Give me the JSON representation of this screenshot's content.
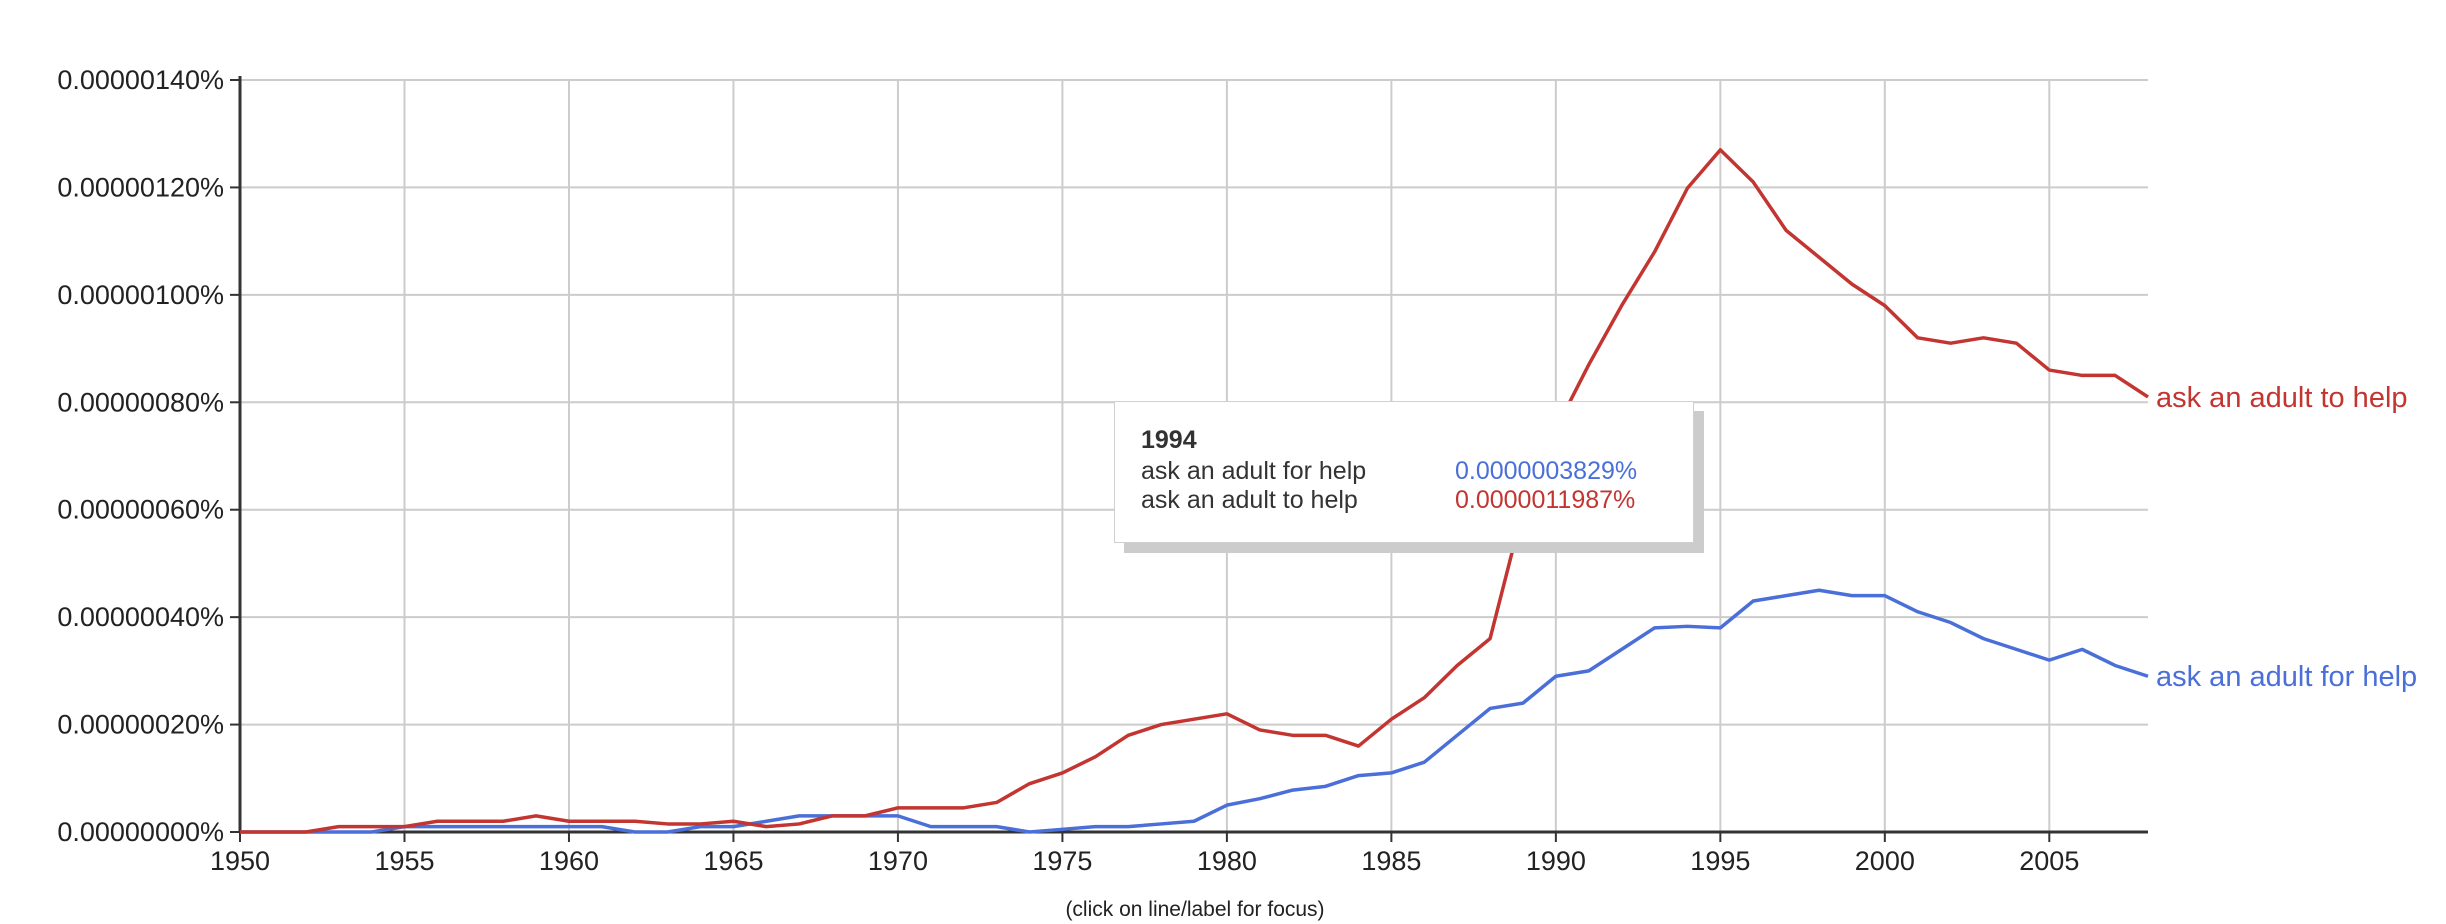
{
  "chart_data": {
    "type": "line",
    "x": [
      1950,
      1951,
      1952,
      1953,
      1954,
      1955,
      1956,
      1957,
      1958,
      1959,
      1960,
      1961,
      1962,
      1963,
      1964,
      1965,
      1966,
      1967,
      1968,
      1969,
      1970,
      1971,
      1972,
      1973,
      1974,
      1975,
      1976,
      1977,
      1978,
      1979,
      1980,
      1981,
      1982,
      1983,
      1984,
      1985,
      1986,
      1987,
      1988,
      1989,
      1990,
      1991,
      1992,
      1993,
      1994,
      1995,
      1996,
      1997,
      1998,
      1999,
      2000,
      2001,
      2002,
      2003,
      2004,
      2005,
      2006,
      2007,
      2008
    ],
    "series": [
      {
        "name": "ask an adult for help",
        "color": "#4a6fd8",
        "values": [
          0,
          0,
          0,
          0,
          0,
          1e-10,
          1e-10,
          1e-10,
          1e-10,
          1e-10,
          1e-10,
          1e-10,
          0,
          0,
          1e-10,
          1e-10,
          2e-10,
          3e-10,
          3e-10,
          3e-10,
          3e-10,
          1e-10,
          1e-10,
          1e-10,
          0,
          5e-11,
          1e-10,
          1e-10,
          1.5e-10,
          2e-10,
          5e-10,
          6.2e-10,
          7.8e-10,
          8.5e-10,
          1.05e-09,
          1.1e-09,
          1.3e-09,
          1.8e-09,
          2.3e-09,
          2.4e-09,
          2.9e-09,
          3e-09,
          3.4e-09,
          3.8e-09,
          3.8293e-09,
          3.8e-09,
          4.3e-09,
          4.4e-09,
          4.5e-09,
          4.4e-09,
          4.4e-09,
          4.1e-09,
          3.9e-09,
          3.6e-09,
          3.4e-09,
          3.2e-09,
          3.4e-09,
          3.1e-09,
          2.9e-09
        ]
      },
      {
        "name": "ask an adult to help",
        "color": "#c23531",
        "values": [
          0,
          0,
          0,
          1e-10,
          1e-10,
          1e-10,
          2e-10,
          2e-10,
          2e-10,
          3e-10,
          2e-10,
          2e-10,
          2e-10,
          1.5e-10,
          1.5e-10,
          2e-10,
          1e-10,
          1.5e-10,
          3e-10,
          3e-10,
          4.5e-10,
          4.5e-10,
          4.5e-10,
          5.5e-10,
          9e-10,
          1.1e-09,
          1.4e-09,
          1.8e-09,
          2e-09,
          2.1e-09,
          2.2e-09,
          1.9e-09,
          1.8e-09,
          1.8e-09,
          1.6e-09,
          2.1e-09,
          2.5e-09,
          3.1e-09,
          3.6e-09,
          6e-09,
          7.5e-09,
          8.7e-09,
          9.8e-09,
          1.08e-08,
          1.1987e-08,
          1.27e-08,
          1.21e-08,
          1.12e-08,
          1.07e-08,
          1.02e-08,
          9.8e-09,
          9.2e-09,
          9.1e-09,
          9.2e-09,
          9.1e-09,
          8.6e-09,
          8.5e-09,
          8.5e-09,
          8.1e-09
        ]
      }
    ],
    "ylim": [
      0,
      1.4e-08
    ],
    "xlim": [
      1950,
      2008
    ],
    "y_ticks": [
      "0.00000140%",
      "0.00000120%",
      "0.00000100%",
      "0.00000080%",
      "0.00000060%",
      "0.00000040%",
      "0.00000020%",
      "0.00000000%"
    ],
    "x_ticks": [
      "1950",
      "1955",
      "1960",
      "1965",
      "1970",
      "1975",
      "1980",
      "1985",
      "1990",
      "1995",
      "2000",
      "2005"
    ],
    "grid": true,
    "legend": "inline-right",
    "tooltip": {
      "year": "1994",
      "rows": [
        {
          "label": "ask an adult for help",
          "value": "0.0000003829%",
          "color": "#4a6fd8"
        },
        {
          "label": "ask an adult to help",
          "value": "0.0000011987%",
          "color": "#c23531"
        }
      ]
    }
  },
  "footer": {
    "hint": "(click on line/label for focus)"
  }
}
